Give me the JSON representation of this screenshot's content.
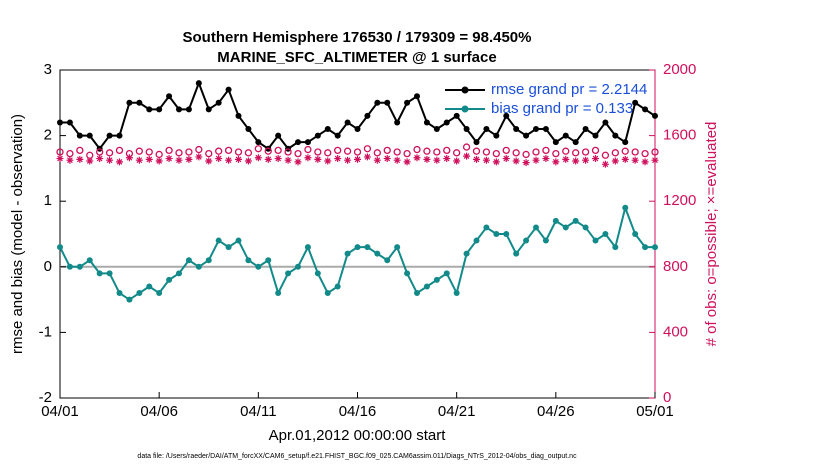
{
  "chart_data": {
    "type": "line",
    "title": "Southern Hemisphere 176530 / 179309 = 98.450%",
    "subtitle": "MARINE_SFC_ALTIMETER @ 1 surface",
    "xlabel": "Apr.01,2012 00:00:00 start",
    "ylabel": "rmse and bias (model - observation)",
    "y2label": "# of obs: o=possible; ×=evaluated",
    "footnote": "data file: /Users/raeder/DAI/ATM_forcXX/CAM6_setup/f.e21.FHIST_BGC.f09_025.CAM6assim.011/Diags_NTrS_2012-04/obs_diag_output.nc",
    "xlim": [
      0,
      30
    ],
    "xticks": [
      {
        "value": 0,
        "label": "04/01"
      },
      {
        "value": 5,
        "label": "04/06"
      },
      {
        "value": 10,
        "label": "04/11"
      },
      {
        "value": 15,
        "label": "04/16"
      },
      {
        "value": 20,
        "label": "04/21"
      },
      {
        "value": 25,
        "label": "04/26"
      },
      {
        "value": 30,
        "label": "05/01"
      }
    ],
    "ylim": [
      -2,
      3
    ],
    "yticks": [
      -2,
      -1,
      0,
      1,
      2,
      3
    ],
    "y2lim": [
      0,
      2000
    ],
    "y2ticks": [
      0,
      400,
      800,
      1200,
      1600,
      2000
    ],
    "x": [
      0,
      0.5,
      1,
      1.5,
      2,
      2.5,
      3,
      3.5,
      4,
      4.5,
      5,
      5.5,
      6,
      6.5,
      7,
      7.5,
      8,
      8.5,
      9,
      9.5,
      10,
      10.5,
      11,
      11.5,
      12,
      12.5,
      13,
      13.5,
      14,
      14.5,
      15,
      15.5,
      16,
      16.5,
      17,
      17.5,
      18,
      18.5,
      19,
      19.5,
      20,
      20.5,
      21,
      21.5,
      22,
      22.5,
      23,
      23.5,
      24,
      24.5,
      25,
      25.5,
      26,
      26.5,
      27,
      27.5,
      28,
      28.5,
      29,
      29.5,
      30
    ],
    "series": [
      {
        "name": "rmse grand pr = 2.2144",
        "color": "#000000",
        "marker": "dot",
        "line": true,
        "values": [
          2.2,
          2.2,
          2.0,
          2.0,
          1.8,
          2.0,
          2.0,
          2.5,
          2.5,
          2.4,
          2.4,
          2.6,
          2.4,
          2.4,
          2.8,
          2.4,
          2.5,
          2.7,
          2.3,
          2.1,
          1.9,
          1.8,
          2.0,
          1.8,
          1.9,
          1.9,
          2.0,
          2.1,
          2.0,
          2.2,
          2.1,
          2.3,
          2.5,
          2.5,
          2.2,
          2.5,
          2.6,
          2.2,
          2.1,
          2.2,
          2.3,
          2.1,
          1.9,
          2.1,
          2.0,
          2.3,
          2.1,
          2.0,
          2.1,
          2.1,
          1.9,
          2.0,
          1.9,
          2.1,
          2.0,
          2.2,
          2.0,
          1.9,
          2.5,
          2.4,
          2.3
        ]
      },
      {
        "name": "bias grand pr = 0.133",
        "color": "#138a8a",
        "marker": "dot",
        "line": true,
        "values": [
          0.3,
          0.0,
          0.0,
          0.1,
          -0.1,
          -0.1,
          -0.4,
          -0.5,
          -0.4,
          -0.3,
          -0.4,
          -0.2,
          -0.1,
          0.1,
          0.0,
          0.1,
          0.4,
          0.3,
          0.4,
          0.1,
          0.0,
          0.1,
          -0.4,
          -0.1,
          0.0,
          0.3,
          -0.1,
          -0.4,
          -0.3,
          0.2,
          0.3,
          0.3,
          0.2,
          0.1,
          0.3,
          -0.1,
          -0.4,
          -0.3,
          -0.2,
          -0.1,
          -0.4,
          0.2,
          0.4,
          0.6,
          0.5,
          0.5,
          0.2,
          0.4,
          0.6,
          0.4,
          0.7,
          0.6,
          0.7,
          0.6,
          0.4,
          0.5,
          0.3,
          0.9,
          0.5,
          0.3,
          0.3
        ]
      },
      {
        "color": "#d0105c",
        "marker": "circle",
        "line": false,
        "axis": "y2",
        "values": [
          1500,
          1490,
          1510,
          1480,
          1500,
          1495,
          1510,
          1490,
          1505,
          1500,
          1485,
          1510,
          1495,
          1500,
          1515,
          1490,
          1505,
          1510,
          1500,
          1495,
          1520,
          1505,
          1510,
          1500,
          1490,
          1515,
          1500,
          1495,
          1510,
          1505,
          1500,
          1520,
          1495,
          1510,
          1500,
          1490,
          1515,
          1505,
          1500,
          1510,
          1495,
          1530,
          1505,
          1500,
          1490,
          1510,
          1495,
          1485,
          1500,
          1510,
          1490,
          1505,
          1495,
          1500,
          1510,
          1480,
          1495,
          1505,
          1500,
          1490,
          1500
        ]
      },
      {
        "color": "#d0105c",
        "marker": "asterisk",
        "line": false,
        "axis": "y2",
        "values": [
          1460,
          1450,
          1455,
          1445,
          1460,
          1450,
          1440,
          1465,
          1450,
          1455,
          1445,
          1460,
          1450,
          1455,
          1470,
          1445,
          1460,
          1450,
          1455,
          1445,
          1465,
          1455,
          1460,
          1450,
          1440,
          1465,
          1455,
          1445,
          1460,
          1450,
          1455,
          1470,
          1450,
          1460,
          1450,
          1440,
          1465,
          1455,
          1450,
          1460,
          1445,
          1475,
          1455,
          1450,
          1440,
          1460,
          1445,
          1435,
          1450,
          1460,
          1440,
          1455,
          1445,
          1450,
          1460,
          1425,
          1445,
          1455,
          1450,
          1440,
          1450
        ]
      }
    ],
    "grid": false,
    "legend": "top-right"
  }
}
